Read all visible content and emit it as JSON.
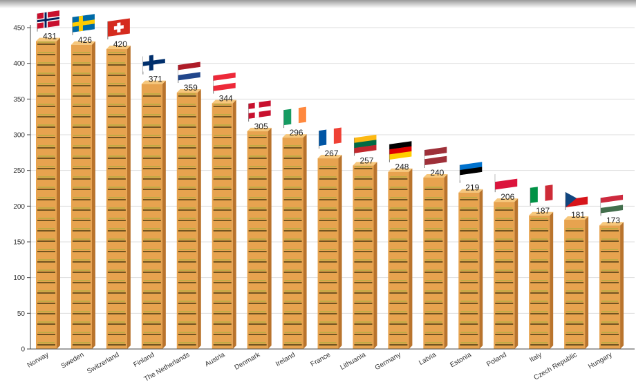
{
  "chart_data": {
    "type": "bar",
    "title": "",
    "xlabel": "",
    "ylabel": "",
    "ylim": [
      0,
      450
    ],
    "yticks": [
      0,
      50,
      100,
      150,
      200,
      250,
      300,
      350,
      400,
      450
    ],
    "grid": true,
    "legend": "none",
    "categories": [
      "Norway",
      "Sweden",
      "Switzerland",
      "Finland",
      "The Netherlands",
      "Austria",
      "Denmark",
      "Ireland",
      "France",
      "Lithuania",
      "Germany",
      "Latvia",
      "Estonia",
      "Poland",
      "Italy",
      "Czech Republic",
      "Hungary"
    ],
    "values": [
      431,
      426,
      420,
      371,
      359,
      344,
      305,
      296,
      267,
      257,
      248,
      240,
      219,
      206,
      187,
      181,
      173
    ],
    "flags": [
      "norway-flag-icon",
      "sweden-flag-icon",
      "switzerland-flag-icon",
      "finland-flag-icon",
      "netherlands-flag-icon",
      "austria-flag-icon",
      "denmark-flag-icon",
      "ireland-flag-icon",
      "france-flag-icon",
      "lithuania-flag-icon",
      "germany-flag-icon",
      "latvia-flag-icon",
      "estonia-flag-icon",
      "poland-flag-icon",
      "italy-flag-icon",
      "czech-republic-flag-icon",
      "hungary-flag-icon"
    ],
    "colors": {
      "bar_face": "#e7a34f",
      "bar_side": "#b9742d",
      "bar_top": "#f6c77c",
      "bun_line": "#4b3a10",
      "lettuce": "#9bb03a",
      "grid": "#dddddd"
    }
  }
}
